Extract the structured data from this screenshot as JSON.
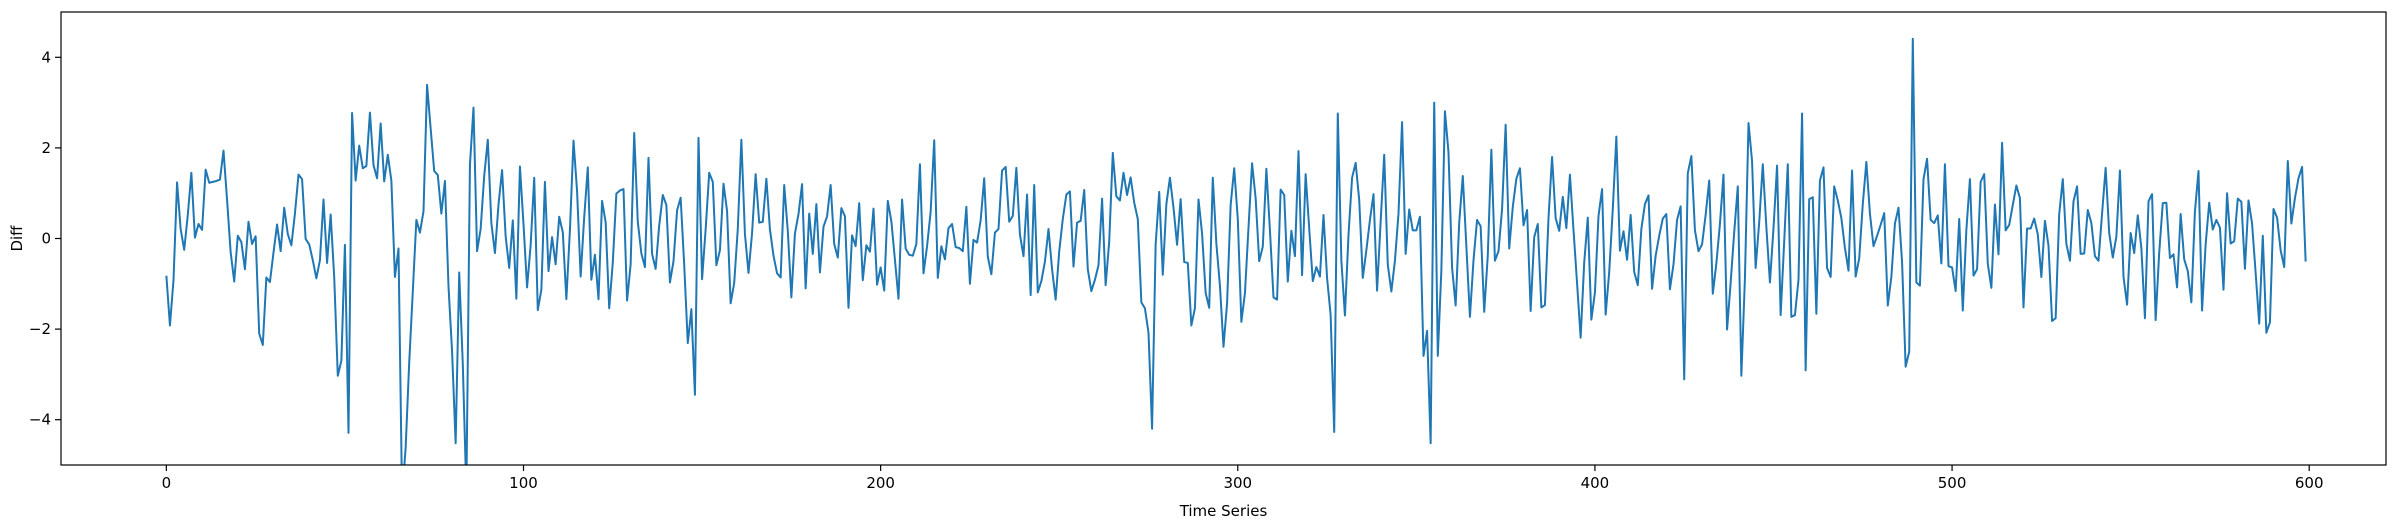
{
  "chart_data": {
    "type": "line",
    "title": "",
    "xlabel": "Time Series",
    "ylabel": "Diff",
    "xlim": [
      -29.5,
      621.5
    ],
    "ylim": [
      -5,
      5
    ],
    "xticks": [
      0,
      100,
      200,
      300,
      400,
      500,
      600
    ],
    "yticks": [
      -4,
      -2,
      0,
      2,
      4
    ],
    "grid": false,
    "legend": "none",
    "colors": {
      "line": "#1f77b4",
      "axes": "#000000",
      "background": "#ffffff"
    },
    "series": [
      {
        "x_start": 0,
        "x_step": 1,
        "values": [
          -0.82,
          -1.92,
          -0.92,
          1.24,
          0.21,
          -0.25,
          0.52,
          1.45,
          0.02,
          0.32,
          0.19,
          1.52,
          1.23,
          1.25,
          1.27,
          1.3,
          1.94,
          0.85,
          -0.3,
          -0.95,
          0.06,
          -0.08,
          -0.68,
          0.37,
          -0.12,
          0.05,
          -2.1,
          -2.35,
          -0.86,
          -0.96,
          -0.31,
          0.31,
          -0.28,
          0.68,
          0.1,
          -0.15,
          0.55,
          1.41,
          1.31,
          -0.01,
          -0.13,
          -0.48,
          -0.88,
          -0.48,
          0.86,
          -0.54,
          0.53,
          -0.85,
          -3.03,
          -2.7,
          -0.14,
          -4.29,
          2.77,
          1.28,
          2.05,
          1.55,
          1.6,
          2.78,
          1.62,
          1.33,
          2.54,
          1.26,
          1.85,
          1.28,
          -0.85,
          -0.22,
          -5.7,
          -4.62,
          -2.74,
          -1.17,
          0.41,
          0.13,
          0.6,
          3.39,
          2.43,
          1.49,
          1.4,
          0.55,
          1.27,
          -1.06,
          -2.49,
          -4.52,
          -0.75,
          -2.77,
          -5.6,
          1.62,
          2.89,
          -0.28,
          0.21,
          1.38,
          2.18,
          0.34,
          -0.32,
          0.75,
          1.51,
          0.05,
          -0.65,
          0.4,
          -1.33,
          1.59,
          0.32,
          -1.08,
          -0.15,
          1.34,
          -1.58,
          -1.13,
          1.25,
          -0.72,
          0.03,
          -0.57,
          0.48,
          0.14,
          -1.34,
          0.19,
          2.16,
          1.05,
          -0.84,
          0.47,
          1.57,
          -0.91,
          -0.36,
          -1.34,
          0.83,
          0.36,
          -1.54,
          -0.53,
          0.99,
          1.06,
          1.09,
          -1.37,
          -0.57,
          2.33,
          0.37,
          -0.33,
          -0.63,
          1.78,
          -0.34,
          -0.67,
          0.29,
          0.96,
          0.74,
          -0.97,
          -0.5,
          0.62,
          0.9,
          -0.58,
          -2.31,
          -1.56,
          -3.45,
          2.22,
          -0.9,
          0.2,
          1.45,
          1.25,
          -0.59,
          -0.26,
          1.21,
          0.61,
          -1.43,
          -0.98,
          0.21,
          2.18,
          0.1,
          -0.76,
          0.12,
          1.42,
          0.35,
          0.37,
          1.32,
          0.2,
          -0.38,
          -0.77,
          -0.86,
          1.18,
          0.17,
          -1.3,
          0.11,
          0.54,
          1.2,
          -1.1,
          0.55,
          -0.34,
          0.76,
          -0.75,
          0.26,
          0.49,
          1.18,
          -0.12,
          -0.42,
          0.67,
          0.49,
          -1.53,
          0.07,
          -0.17,
          0.78,
          -0.92,
          -0.15,
          -0.29,
          0.66,
          -1.02,
          -0.64,
          -1.15,
          0.83,
          0.38,
          -0.47,
          -1.33,
          0.86,
          -0.22,
          -0.36,
          -0.38,
          -0.12,
          1.64,
          -0.77,
          -0.17,
          0.59,
          2.17,
          -0.87,
          -0.17,
          -0.46,
          0.23,
          0.32,
          -0.19,
          -0.21,
          -0.28,
          0.7,
          -1.0,
          -0.03,
          -0.09,
          0.4,
          1.33,
          -0.4,
          -0.79,
          0.13,
          0.21,
          1.5,
          1.58,
          0.37,
          0.5,
          1.56,
          0.09,
          -0.39,
          0.97,
          -1.25,
          1.18,
          -1.19,
          -0.94,
          -0.51,
          0.21,
          -0.68,
          -1.35,
          -0.29,
          0.43,
          0.97,
          1.04,
          -0.62,
          0.35,
          0.39,
          1.07,
          -0.68,
          -1.16,
          -0.91,
          -0.59,
          0.88,
          -1.03,
          -0.07,
          1.89,
          0.93,
          0.84,
          1.45,
          0.96,
          1.35,
          0.79,
          0.43,
          -1.41,
          -1.54,
          -2.08,
          -4.2,
          -0.13,
          1.03,
          -0.8,
          0.76,
          1.34,
          0.68,
          -0.14,
          0.87,
          -0.52,
          -0.54,
          -1.92,
          -1.54,
          0.86,
          0.11,
          -1.2,
          -1.53,
          1.34,
          -0.11,
          -1.04,
          -2.39,
          -1.43,
          0.74,
          1.55,
          0.43,
          -1.84,
          -1.21,
          0.24,
          1.66,
          0.89,
          -0.5,
          -0.18,
          1.54,
          0.18,
          -1.3,
          -1.35,
          1.08,
          0.96,
          -0.95,
          0.17,
          -0.39,
          1.93,
          -0.81,
          1.42,
          0.22,
          -0.94,
          -0.63,
          -0.84,
          0.52,
          -0.87,
          -1.69,
          -4.27,
          2.76,
          -0.49,
          -1.7,
          0.08,
          1.34,
          1.67,
          0.85,
          -0.87,
          -0.26,
          0.41,
          0.98,
          -1.15,
          0.37,
          1.85,
          -0.58,
          -1.17,
          -0.49,
          0.55,
          2.57,
          -0.34,
          0.64,
          0.18,
          0.18,
          0.48,
          -2.59,
          -2.04,
          -4.52,
          3.0,
          -2.59,
          -0.7,
          2.81,
          1.9,
          -0.64,
          -1.48,
          0.35,
          1.38,
          -0.17,
          -1.73,
          -0.48,
          0.41,
          0.27,
          -1.62,
          -0.37,
          1.96,
          -0.49,
          -0.28,
          0.65,
          2.51,
          -0.22,
          0.7,
          1.32,
          1.55,
          0.29,
          0.63,
          -1.6,
          0.03,
          0.32,
          -1.52,
          -1.47,
          0.45,
          1.8,
          0.45,
          0.17,
          0.92,
          0.23,
          1.41,
          0.19,
          -0.99,
          -2.19,
          -0.53,
          0.46,
          -1.79,
          -1.19,
          0.5,
          1.09,
          -1.68,
          -0.74,
          0.65,
          2.25,
          -0.27,
          0.16,
          -0.47,
          0.52,
          -0.74,
          -1.03,
          0.21,
          0.76,
          0.95,
          -1.11,
          -0.38,
          0.06,
          0.44,
          0.54,
          -1.12,
          -0.57,
          0.41,
          0.71,
          -3.11,
          1.44,
          1.82,
          0.18,
          -0.28,
          -0.13,
          0.52,
          1.28,
          -1.22,
          -0.55,
          0.32,
          1.41,
          -2.01,
          -0.98,
          0.14,
          1.15,
          -3.03,
          -0.88,
          2.55,
          1.71,
          -0.65,
          0.36,
          1.64,
          0.25,
          -0.97,
          0.23,
          1.61,
          -1.69,
          -0.06,
          1.64,
          -1.73,
          -1.69,
          -0.91,
          2.76,
          -2.91,
          0.87,
          0.91,
          -1.66,
          1.28,
          1.57,
          -0.65,
          -0.85,
          1.15,
          0.84,
          0.45,
          -0.21,
          -0.71,
          1.5,
          -0.84,
          -0.44,
          0.76,
          1.69,
          0.55,
          -0.17,
          0.06,
          0.3,
          0.56,
          -1.48,
          -0.85,
          0.33,
          0.68,
          -0.52,
          -2.83,
          -2.5,
          4.41,
          -0.97,
          -1.04,
          1.31,
          1.76,
          0.41,
          0.34,
          0.51,
          -0.55,
          1.64,
          -0.61,
          -0.64,
          -1.16,
          0.43,
          -1.59,
          0.19,
          1.31,
          -0.82,
          -0.68,
          1.25,
          1.42,
          -0.56,
          -1.09,
          0.75,
          -0.35,
          2.11,
          0.18,
          0.3,
          0.74,
          1.17,
          0.89,
          -1.52,
          0.22,
          0.22,
          0.44,
          0.09,
          -0.85,
          0.39,
          -0.16,
          -1.82,
          -1.76,
          0.54,
          1.31,
          -0.12,
          -0.49,
          0.82,
          1.15,
          -0.34,
          -0.33,
          0.63,
          0.34,
          -0.39,
          -0.49,
          0.55,
          1.56,
          0.12,
          -0.42,
          0.04,
          1.5,
          -0.85,
          -1.46,
          0.12,
          -0.32,
          0.51,
          -0.21,
          -1.76,
          0.82,
          0.98,
          -1.8,
          -0.31,
          0.78,
          0.79,
          -0.43,
          -0.35,
          -1.08,
          0.54,
          -0.46,
          -0.72,
          -1.41,
          0.6,
          1.49,
          -1.59,
          -0.13,
          0.79,
          0.2,
          0.41,
          0.24,
          -1.13,
          1.0,
          -0.11,
          -0.06,
          0.88,
          0.81,
          -0.67,
          0.84,
          0.33,
          -0.76,
          -1.88,
          0.06,
          -2.08,
          -1.85,
          0.65,
          0.46,
          -0.26,
          -0.63,
          1.71,
          0.33,
          0.89,
          1.33,
          1.58,
          -0.51
        ]
      }
    ]
  }
}
